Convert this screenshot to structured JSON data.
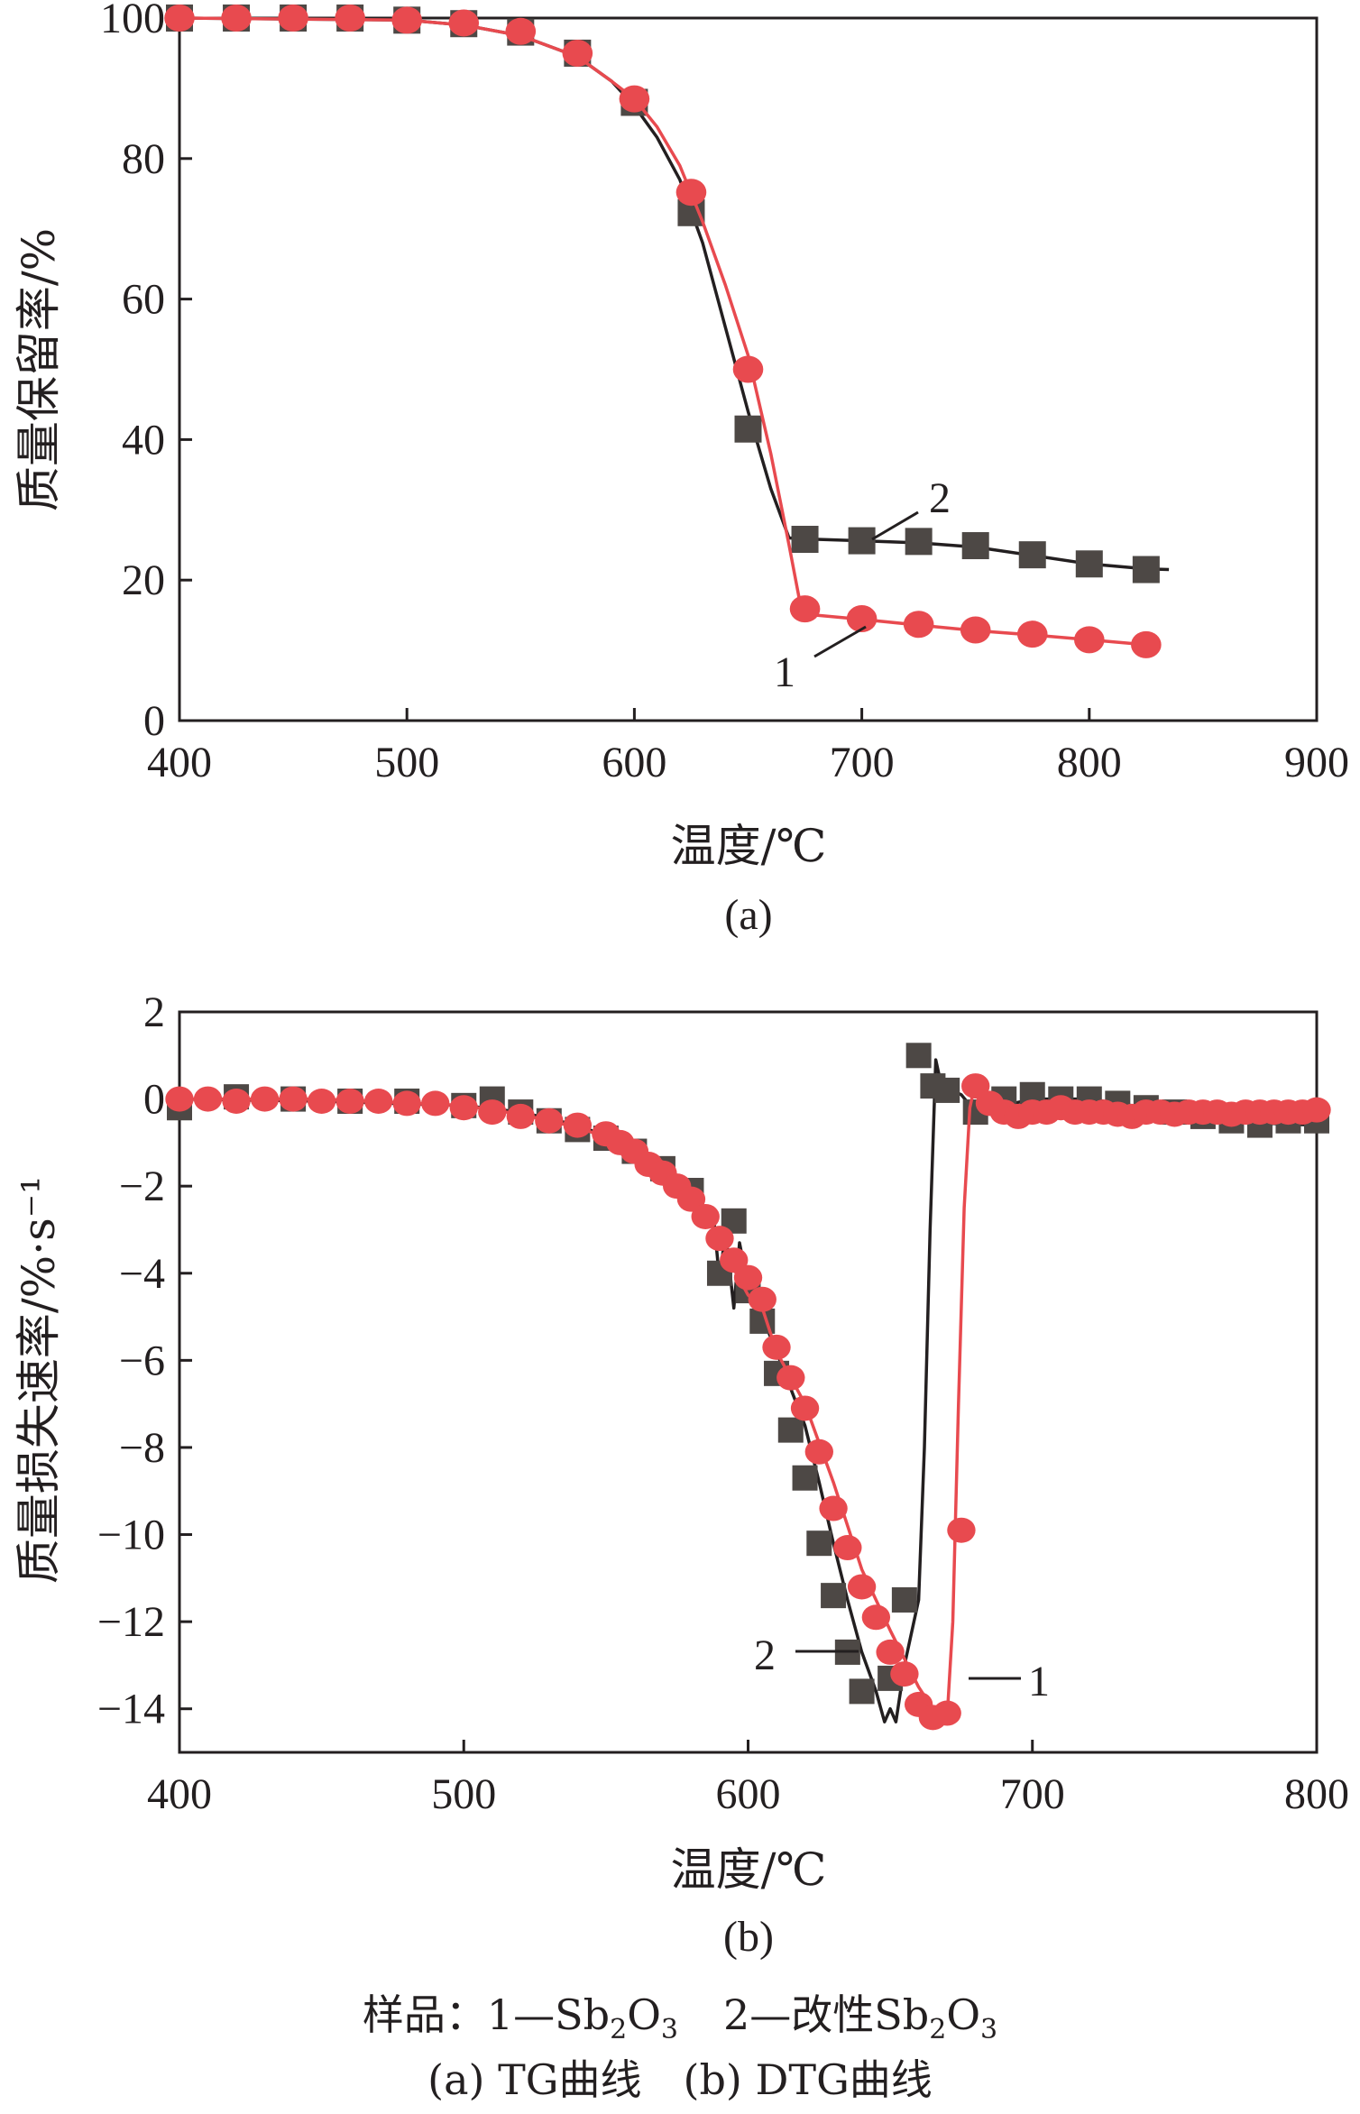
{
  "chart_data": [
    {
      "type": "line",
      "sublabel": "(a)",
      "xlabel": "温度/℃",
      "ylabel": "质量保留率/%",
      "xlim": [
        400,
        900
      ],
      "ylim": [
        0,
        100
      ],
      "xticks": [
        400,
        500,
        600,
        700,
        800,
        900
      ],
      "yticks": [
        0,
        20,
        40,
        60,
        80,
        100
      ],
      "annotations": [
        "2",
        "1"
      ],
      "series": [
        {
          "id": "2",
          "color": "#231f20",
          "marker_color": "#4d4845",
          "marker": "square",
          "curve": [
            [
              400,
              100
            ],
            [
              500,
              99.7
            ],
            [
              525,
              99
            ],
            [
              550,
              97.5
            ],
            [
              575,
              94.5
            ],
            [
              590,
              91
            ],
            [
              600,
              87.5
            ],
            [
              610,
              83
            ],
            [
              620,
              77
            ],
            [
              630,
              68
            ],
            [
              640,
              56
            ],
            [
              650,
              44
            ],
            [
              660,
              33
            ],
            [
              668,
              26
            ],
            [
              680,
              25.8
            ],
            [
              700,
              25.6
            ],
            [
              725,
              25.3
            ],
            [
              750,
              24.7
            ],
            [
              775,
              23.5
            ],
            [
              800,
              22.3
            ],
            [
              825,
              21.6
            ],
            [
              835,
              21.5
            ]
          ],
          "markers": [
            [
              400,
              100
            ],
            [
              425,
              100
            ],
            [
              450,
              100
            ],
            [
              475,
              100
            ],
            [
              500,
              99.7
            ],
            [
              525,
              99.2
            ],
            [
              550,
              98
            ],
            [
              575,
              95
            ],
            [
              600,
              88
            ],
            [
              625,
              72.3
            ],
            [
              650,
              41.5
            ],
            [
              675,
              25.8
            ],
            [
              700,
              25.6
            ],
            [
              725,
              25.5
            ],
            [
              750,
              24.9
            ],
            [
              775,
              23.6
            ],
            [
              800,
              22.3
            ],
            [
              825,
              21.5
            ]
          ]
        },
        {
          "id": "1",
          "color": "#e84a4f",
          "marker_color": "#e84a4f",
          "marker": "circle",
          "curve": [
            [
              400,
              100
            ],
            [
              500,
              99.7
            ],
            [
              525,
              99
            ],
            [
              550,
              97.5
            ],
            [
              575,
              94.5
            ],
            [
              590,
              91
            ],
            [
              600,
              88.5
            ],
            [
              610,
              84.5
            ],
            [
              620,
              79
            ],
            [
              630,
              71
            ],
            [
              640,
              62
            ],
            [
              650,
              52
            ],
            [
              660,
              38
            ],
            [
              668,
              25
            ],
            [
              673,
              16.5
            ],
            [
              680,
              15
            ],
            [
              700,
              14.4
            ],
            [
              725,
              13.6
            ],
            [
              750,
              12.8
            ],
            [
              775,
              12.2
            ],
            [
              800,
              11.5
            ],
            [
              825,
              10.8
            ]
          ],
          "markers": [
            [
              400,
              100
            ],
            [
              425,
              100
            ],
            [
              450,
              100
            ],
            [
              475,
              100
            ],
            [
              500,
              99.7
            ],
            [
              525,
              99.3
            ],
            [
              550,
              98.1
            ],
            [
              575,
              95
            ],
            [
              600,
              88.5
            ],
            [
              625,
              75.2
            ],
            [
              650,
              50
            ],
            [
              675,
              15.9
            ],
            [
              700,
              14.5
            ],
            [
              725,
              13.7
            ],
            [
              750,
              12.9
            ],
            [
              775,
              12.3
            ],
            [
              800,
              11.5
            ],
            [
              825,
              10.8
            ]
          ]
        }
      ]
    },
    {
      "type": "line",
      "sublabel": "(b)",
      "xlabel": "温度/℃",
      "ylabel": "质量损失速率/%·s⁻¹",
      "xlim": [
        400,
        800
      ],
      "ylim": [
        -15,
        2
      ],
      "xticks": [
        400,
        500,
        600,
        700,
        800
      ],
      "yticks": [
        2,
        0,
        -2,
        -4,
        -6,
        -8,
        -10,
        -12,
        -14
      ],
      "annotations": [
        "2",
        "1"
      ],
      "series": [
        {
          "id": "2",
          "color": "#231f20",
          "marker_color": "#4d4845",
          "marker": "square",
          "curve": [
            [
              400,
              0
            ],
            [
              450,
              -0.05
            ],
            [
              500,
              -0.15
            ],
            [
              520,
              -0.3
            ],
            [
              540,
              -0.6
            ],
            [
              560,
              -1.1
            ],
            [
              570,
              -1.5
            ],
            [
              580,
              -2.1
            ],
            [
              588,
              -2.8
            ],
            [
              590,
              -4.2
            ],
            [
              592,
              -3
            ],
            [
              595,
              -4.8
            ],
            [
              597,
              -3.3
            ],
            [
              600,
              -4.3
            ],
            [
              605,
              -5
            ],
            [
              610,
              -5.8
            ],
            [
              620,
              -7.5
            ],
            [
              625,
              -8.8
            ],
            [
              630,
              -10.2
            ],
            [
              635,
              -11.5
            ],
            [
              640,
              -12.7
            ],
            [
              645,
              -13.6
            ],
            [
              648,
              -14.3
            ],
            [
              650,
              -14
            ],
            [
              652,
              -14.3
            ],
            [
              655,
              -13
            ],
            [
              660,
              -11.5
            ],
            [
              662,
              -8
            ],
            [
              664,
              -3
            ],
            [
              666,
              0.9
            ],
            [
              668,
              0.3
            ],
            [
              675,
              0.1
            ],
            [
              680,
              -0.3
            ],
            [
              700,
              0
            ],
            [
              720,
              0
            ],
            [
              740,
              -0.2
            ],
            [
              760,
              -0.4
            ],
            [
              780,
              -0.55
            ],
            [
              800,
              -0.6
            ]
          ],
          "markers": [
            [
              400,
              -0.2
            ],
            [
              420,
              0.05
            ],
            [
              440,
              0
            ],
            [
              460,
              -0.05
            ],
            [
              480,
              -0.05
            ],
            [
              500,
              -0.15
            ],
            [
              510,
              0
            ],
            [
              520,
              -0.3
            ],
            [
              530,
              -0.5
            ],
            [
              540,
              -0.7
            ],
            [
              550,
              -0.9
            ],
            [
              560,
              -1.2
            ],
            [
              570,
              -1.6
            ],
            [
              580,
              -2.1
            ],
            [
              590,
              -4
            ],
            [
              595,
              -2.8
            ],
            [
              600,
              -4.4
            ],
            [
              605,
              -5.1
            ],
            [
              610,
              -6.3
            ],
            [
              615,
              -7.6
            ],
            [
              620,
              -8.7
            ],
            [
              625,
              -10.2
            ],
            [
              630,
              -11.4
            ],
            [
              635,
              -12.7
            ],
            [
              640,
              -13.6
            ],
            [
              650,
              -13.3
            ],
            [
              655,
              -11.5
            ],
            [
              660,
              1
            ],
            [
              665,
              0.3
            ],
            [
              670,
              0.2
            ],
            [
              680,
              -0.3
            ],
            [
              690,
              0
            ],
            [
              700,
              0.1
            ],
            [
              710,
              0
            ],
            [
              720,
              0
            ],
            [
              730,
              -0.1
            ],
            [
              740,
              -0.2
            ],
            [
              750,
              -0.3
            ],
            [
              760,
              -0.4
            ],
            [
              770,
              -0.5
            ],
            [
              780,
              -0.6
            ],
            [
              790,
              -0.5
            ],
            [
              800,
              -0.5
            ]
          ]
        },
        {
          "id": "1",
          "color": "#e84a4f",
          "marker_color": "#e84a4f",
          "marker": "circle",
          "curve": [
            [
              400,
              0
            ],
            [
              450,
              0
            ],
            [
              500,
              -0.15
            ],
            [
              520,
              -0.35
            ],
            [
              540,
              -0.65
            ],
            [
              560,
              -1.1
            ],
            [
              570,
              -1.45
            ],
            [
              580,
              -2.2
            ],
            [
              585,
              -2.7
            ],
            [
              590,
              -3.2
            ],
            [
              595,
              -3.9
            ],
            [
              600,
              -4.5
            ],
            [
              605,
              -4.8
            ],
            [
              610,
              -5.8
            ],
            [
              620,
              -7
            ],
            [
              630,
              -8.8
            ],
            [
              640,
              -10.8
            ],
            [
              650,
              -12.2
            ],
            [
              660,
              -13.5
            ],
            [
              668,
              -14.3
            ],
            [
              670,
              -14.2
            ],
            [
              672,
              -12
            ],
            [
              674,
              -7
            ],
            [
              676,
              -2.5
            ],
            [
              678,
              -0.2
            ],
            [
              680,
              0.4
            ],
            [
              684,
              0
            ],
            [
              690,
              -0.4
            ],
            [
              700,
              -0.3
            ],
            [
              720,
              -0.2
            ],
            [
              740,
              -0.3
            ],
            [
              760,
              -0.35
            ],
            [
              780,
              -0.35
            ],
            [
              800,
              -0.3
            ]
          ],
          "markers": [
            [
              400,
              0
            ],
            [
              410,
              0
            ],
            [
              420,
              -0.05
            ],
            [
              430,
              0
            ],
            [
              440,
              0
            ],
            [
              450,
              -0.05
            ],
            [
              460,
              -0.05
            ],
            [
              470,
              -0.05
            ],
            [
              480,
              -0.1
            ],
            [
              490,
              -0.1
            ],
            [
              500,
              -0.2
            ],
            [
              510,
              -0.3
            ],
            [
              520,
              -0.4
            ],
            [
              530,
              -0.5
            ],
            [
              540,
              -0.6
            ],
            [
              550,
              -0.8
            ],
            [
              555,
              -1
            ],
            [
              560,
              -1.2
            ],
            [
              565,
              -1.5
            ],
            [
              570,
              -1.7
            ],
            [
              575,
              -2
            ],
            [
              580,
              -2.3
            ],
            [
              585,
              -2.7
            ],
            [
              590,
              -3.2
            ],
            [
              595,
              -3.7
            ],
            [
              600,
              -4.1
            ],
            [
              605,
              -4.6
            ],
            [
              610,
              -5.7
            ],
            [
              615,
              -6.4
            ],
            [
              620,
              -7.1
            ],
            [
              625,
              -8.1
            ],
            [
              630,
              -9.4
            ],
            [
              635,
              -10.3
            ],
            [
              640,
              -11.2
            ],
            [
              645,
              -11.9
            ],
            [
              650,
              -12.7
            ],
            [
              655,
              -13.2
            ],
            [
              660,
              -13.9
            ],
            [
              665,
              -14.2
            ],
            [
              670,
              -14.1
            ],
            [
              675,
              -9.9
            ],
            [
              680,
              0.3
            ],
            [
              685,
              -0.1
            ],
            [
              690,
              -0.3
            ],
            [
              695,
              -0.4
            ],
            [
              700,
              -0.3
            ],
            [
              705,
              -0.3
            ],
            [
              710,
              -0.2
            ],
            [
              715,
              -0.3
            ],
            [
              720,
              -0.3
            ],
            [
              725,
              -0.3
            ],
            [
              730,
              -0.35
            ],
            [
              735,
              -0.4
            ],
            [
              740,
              -0.3
            ],
            [
              745,
              -0.3
            ],
            [
              750,
              -0.35
            ],
            [
              755,
              -0.3
            ],
            [
              760,
              -0.3
            ],
            [
              765,
              -0.3
            ],
            [
              770,
              -0.35
            ],
            [
              775,
              -0.3
            ],
            [
              780,
              -0.3
            ],
            [
              785,
              -0.3
            ],
            [
              790,
              -0.3
            ],
            [
              795,
              -0.3
            ],
            [
              800,
              -0.25
            ]
          ]
        }
      ]
    }
  ],
  "caption": {
    "legend_prefix": "样品：",
    "legend_item_1": "1—Sb",
    "legend_item_2": "2—改性Sb",
    "sub_2": "2",
    "o": "O",
    "sub_3": "3",
    "line2": "(a) TG曲线　(b) DTG曲线"
  }
}
